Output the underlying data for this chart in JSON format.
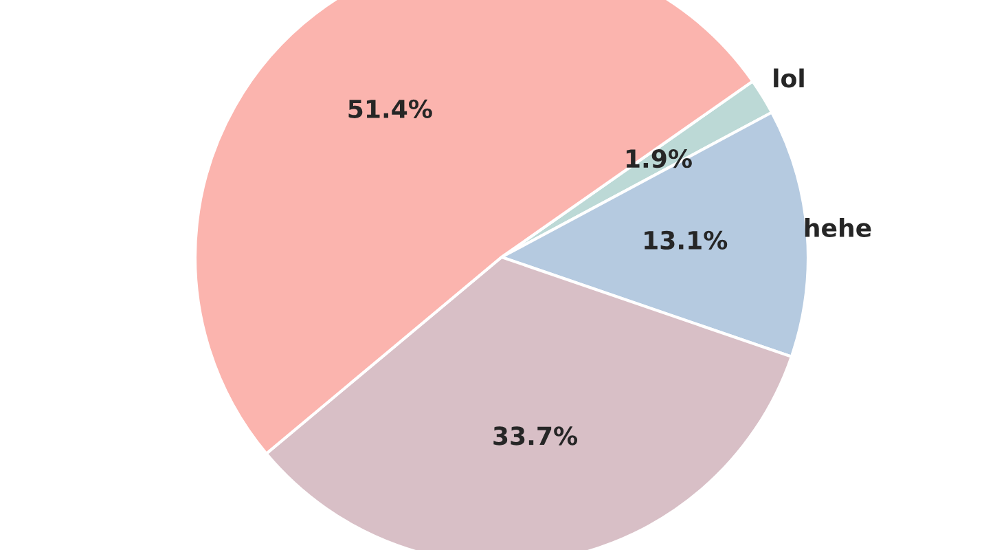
{
  "chart_data": {
    "type": "pie",
    "categories": [
      "lol",
      "hehe",
      null,
      null
    ],
    "values": [
      1.9,
      13.1,
      33.7,
      51.4
    ],
    "colors": [
      "#bcd9d6",
      "#b5cae0",
      "#d8bfc6",
      "#fbb4ae"
    ],
    "value_labels": [
      "1.9%",
      "13.1%",
      "33.7%",
      "51.4%"
    ],
    "legend": false
  }
}
